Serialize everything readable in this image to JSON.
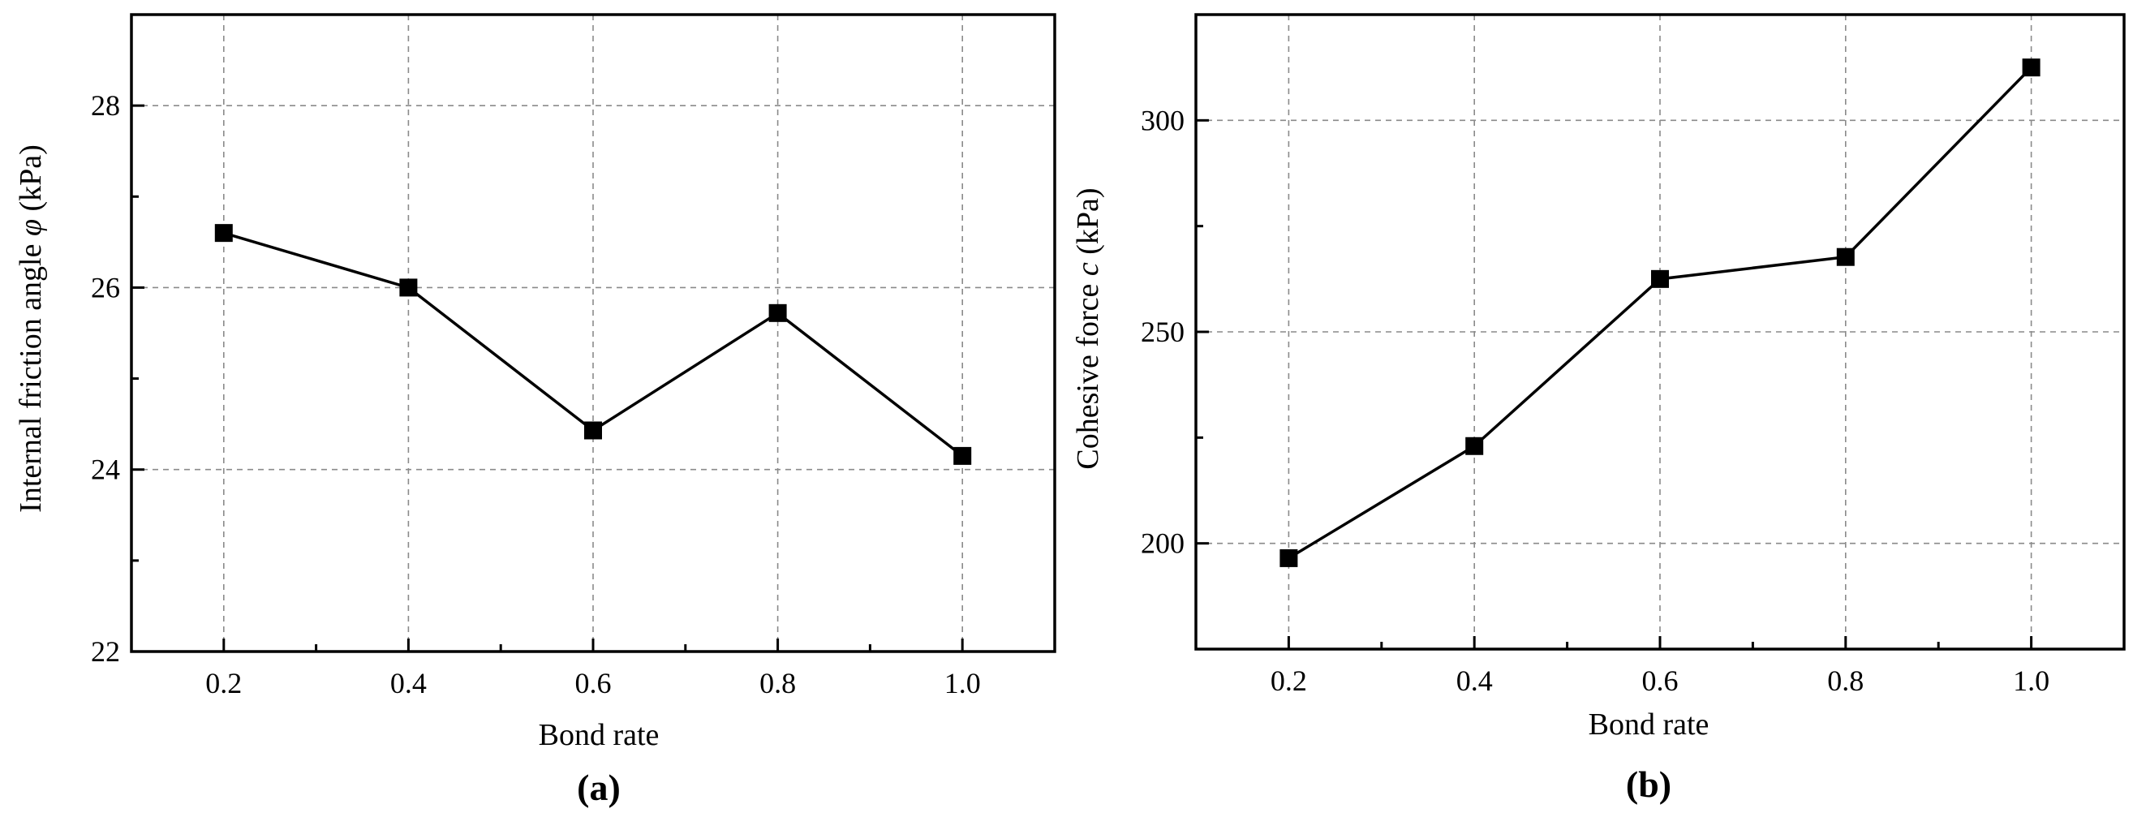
{
  "chart_data": [
    {
      "type": "line",
      "panel_label": "(a)",
      "xlabel": "Bond rate",
      "ylabel_prefix": "Internal friction angle ",
      "ylabel_symbol": "φ",
      "ylabel_suffix": " (kPa)",
      "xlim": [
        0.1,
        1.1
      ],
      "ylim": [
        22,
        29
      ],
      "xticks": [
        0.2,
        0.4,
        0.6,
        0.8,
        1.0
      ],
      "xtick_labels": [
        "0.2",
        "0.4",
        "0.6",
        "0.8",
        "1.0"
      ],
      "yticks": [
        22,
        24,
        26,
        28
      ],
      "ytick_labels": [
        "22",
        "24",
        "26",
        "28"
      ],
      "grid": true,
      "series": [
        {
          "x": [
            0.2,
            0.4,
            0.6,
            0.8,
            1.0
          ],
          "values": [
            26.6,
            26.0,
            24.43,
            25.72,
            24.15
          ],
          "marker": "square",
          "color": "#000000"
        }
      ]
    },
    {
      "type": "line",
      "panel_label": "(b)",
      "xlabel": "Bond rate",
      "ylabel_prefix": "Cohesive force ",
      "ylabel_symbol": "c",
      "ylabel_suffix": " (kPa)",
      "xlim": [
        0.1,
        1.1
      ],
      "ylim": [
        175,
        325
      ],
      "xticks": [
        0.2,
        0.4,
        0.6,
        0.8,
        1.0
      ],
      "xtick_labels": [
        "0.2",
        "0.4",
        "0.6",
        "0.8",
        "1.0"
      ],
      "yticks": [
        200,
        250,
        300
      ],
      "ytick_labels": [
        "200",
        "250",
        "300"
      ],
      "grid": true,
      "series": [
        {
          "x": [
            0.2,
            0.4,
            0.6,
            0.8,
            1.0
          ],
          "values": [
            196.5,
            223.0,
            262.5,
            267.7,
            312.5
          ],
          "marker": "square",
          "color": "#000000"
        }
      ]
    }
  ]
}
